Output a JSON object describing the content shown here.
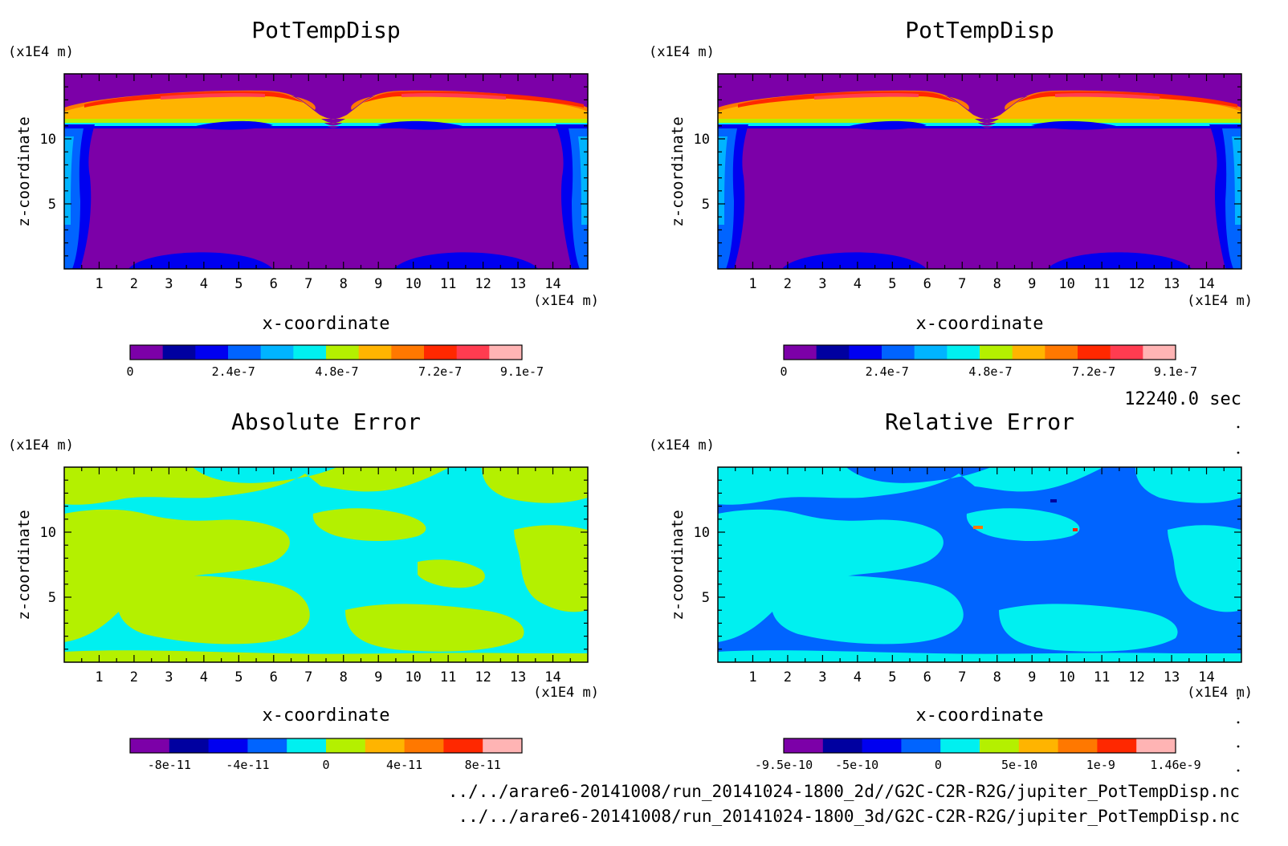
{
  "time_label": "12240.0 sec",
  "footer": {
    "path_2d": "../../arare6-20141008/run_20141024-1800_2d//G2C-C2R-R2G/jupiter_PotTempDisp.nc",
    "path_3d": "../../arare6-20141008/run_20141024-1800_3d/G2C-C2R-R2G/jupiter_PotTempDisp.nc"
  },
  "chart_data": [
    {
      "type": "heatmap",
      "title": "PotTempDisp",
      "xlabel": "x-coordinate",
      "ylabel": "z-coordinate",
      "x_unit": "(x1E4 m)",
      "y_unit": "(x1E4 m)",
      "xlim": [
        0,
        15
      ],
      "ylim": [
        0,
        15
      ],
      "x_ticks": [
        "1",
        "2",
        "3",
        "4",
        "5",
        "6",
        "7",
        "8",
        "9",
        "10",
        "11",
        "12",
        "13",
        "14"
      ],
      "y_ticks": [
        "5",
        "10"
      ],
      "colorbar": {
        "colors": [
          "#7c00a8",
          "#0000a0",
          "#0000f0",
          "#0064ff",
          "#00b4ff",
          "#00f0f0",
          "#b4f000",
          "#ffb400",
          "#ff7800",
          "#ff2800",
          "#ff3c50",
          "#ffb4b4"
        ],
        "tick_labels": [
          "0",
          "2.4e-7",
          "4.8e-7",
          "7.2e-7",
          "9.1e-7"
        ],
        "tick_values": [
          0,
          2.4e-07,
          4.8e-07,
          7.2e-07,
          9.1e-07
        ],
        "range": [
          0,
          9.1e-07
        ]
      },
      "field": "potential-temperature-disturbance: ~0 in interior; warm layer ~9e-7 near z=11-13.5 with a dip near x=7.5; weak positive plumes along side walls"
    },
    {
      "type": "heatmap",
      "title": "PotTempDisp",
      "xlabel": "x-coordinate",
      "ylabel": "z-coordinate",
      "x_unit": "(x1E4 m)",
      "y_unit": "(x1E4 m)",
      "xlim": [
        0,
        15
      ],
      "ylim": [
        0,
        15
      ],
      "x_ticks": [
        "1",
        "2",
        "3",
        "4",
        "5",
        "6",
        "7",
        "8",
        "9",
        "10",
        "11",
        "12",
        "13",
        "14"
      ],
      "y_ticks": [
        "5",
        "10"
      ],
      "colorbar": {
        "colors": [
          "#7c00a8",
          "#0000a0",
          "#0000f0",
          "#0064ff",
          "#00b4ff",
          "#00f0f0",
          "#b4f000",
          "#ffb400",
          "#ff7800",
          "#ff2800",
          "#ff3c50",
          "#ffb4b4"
        ],
        "tick_labels": [
          "0",
          "2.4e-7",
          "4.8e-7",
          "7.2e-7",
          "9.1e-7"
        ],
        "tick_values": [
          0,
          2.4e-07,
          4.8e-07,
          7.2e-07,
          9.1e-07
        ],
        "range": [
          0,
          9.1e-07
        ]
      },
      "field": "same as 2d run"
    },
    {
      "type": "heatmap",
      "title": "Absolute Error",
      "xlabel": "x-coordinate",
      "ylabel": "z-coordinate",
      "x_unit": "(x1E4 m)",
      "y_unit": "(x1E4 m)",
      "xlim": [
        0,
        15
      ],
      "ylim": [
        0,
        15
      ],
      "x_ticks": [
        "1",
        "2",
        "3",
        "4",
        "5",
        "6",
        "7",
        "8",
        "9",
        "10",
        "11",
        "12",
        "13",
        "14"
      ],
      "y_ticks": [
        "5",
        "10"
      ],
      "colorbar": {
        "colors": [
          "#7c00a8",
          "#0000a0",
          "#0000f0",
          "#0064ff",
          "#00f0f0",
          "#b4f000",
          "#ffb400",
          "#ff7800",
          "#ff2800",
          "#ffb4b4"
        ],
        "tick_labels": [
          "-8e-11",
          "-4e-11",
          "0",
          "4e-11",
          "8e-11"
        ],
        "tick_values": [
          -8e-11,
          -4e-11,
          0,
          4e-11,
          8e-11
        ],
        "range": [
          -1e-10,
          1e-10
        ]
      },
      "field": "alternating patches of ~0 (cyan) and small positive (yellow-green)"
    },
    {
      "type": "heatmap",
      "title": "Relative Error",
      "xlabel": "x-coordinate",
      "ylabel": "z-coordinate",
      "x_unit": "(x1E4 m)",
      "y_unit": "(x1E4 m)",
      "xlim": [
        0,
        15
      ],
      "ylim": [
        0,
        15
      ],
      "x_ticks": [
        "1",
        "2",
        "3",
        "4",
        "5",
        "6",
        "7",
        "8",
        "9",
        "10",
        "11",
        "12",
        "13",
        "14"
      ],
      "y_ticks": [
        "5",
        "10"
      ],
      "colorbar": {
        "colors": [
          "#7c00a8",
          "#0000a0",
          "#0000f0",
          "#0064ff",
          "#00f0f0",
          "#b4f000",
          "#ffb400",
          "#ff7800",
          "#ff2800",
          "#ffb4b4"
        ],
        "tick_labels": [
          "-9.5e-10",
          "-5e-10",
          "0",
          "5e-10",
          "1e-9",
          "1.46e-9"
        ],
        "tick_values": [
          -9.5e-10,
          -5e-10,
          0,
          5e-10,
          1e-09,
          1.46e-09
        ],
        "range": [
          -9.5e-10,
          1.46e-09
        ]
      },
      "field": "alternating patches of ~0 (cyan) and small negative (blue), isolated spots near z~10.5"
    }
  ]
}
